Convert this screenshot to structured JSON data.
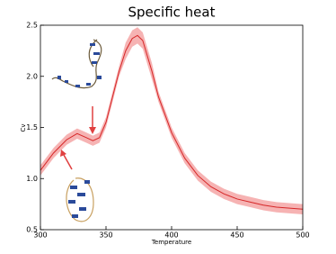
{
  "chart_data": {
    "type": "line",
    "title": "Specific heat",
    "x_label": "Temperature",
    "y_label": "Cv",
    "x": [
      300,
      310,
      320,
      328,
      335,
      340,
      345,
      350,
      355,
      360,
      365,
      370,
      374,
      378,
      385,
      390,
      400,
      410,
      420,
      430,
      440,
      450,
      460,
      470,
      480,
      490,
      500
    ],
    "series": [
      {
        "color": "#d62728",
        "band_color": "#f4a6a6",
        "values": [
          1.08,
          1.25,
          1.38,
          1.44,
          1.4,
          1.37,
          1.4,
          1.55,
          1.8,
          2.05,
          2.25,
          2.37,
          2.4,
          2.35,
          2.05,
          1.8,
          1.45,
          1.2,
          1.03,
          0.92,
          0.85,
          0.8,
          0.77,
          0.74,
          0.72,
          0.71,
          0.7
        ],
        "upper": [
          1.13,
          1.3,
          1.43,
          1.49,
          1.45,
          1.42,
          1.45,
          1.6,
          1.85,
          2.1,
          2.33,
          2.45,
          2.48,
          2.43,
          2.13,
          1.85,
          1.5,
          1.25,
          1.08,
          0.97,
          0.9,
          0.85,
          0.82,
          0.79,
          0.77,
          0.76,
          0.75
        ],
        "lower": [
          1.03,
          1.2,
          1.33,
          1.39,
          1.35,
          1.32,
          1.35,
          1.5,
          1.75,
          2.0,
          2.17,
          2.29,
          2.32,
          2.27,
          1.97,
          1.75,
          1.4,
          1.15,
          0.98,
          0.87,
          0.8,
          0.75,
          0.72,
          0.69,
          0.67,
          0.66,
          0.65
        ]
      }
    ],
    "xlim": [
      300,
      500
    ],
    "xticks": [
      300,
      350,
      400,
      450,
      500
    ],
    "ylim": [
      0.5,
      2.5
    ],
    "yticks": [
      0.5,
      {
        "value": 1.0,
        "label": "1.0"
      },
      1.5,
      {
        "value": 2.0,
        "label": "2.0"
      },
      2.5
    ],
    "grid": false
  }
}
